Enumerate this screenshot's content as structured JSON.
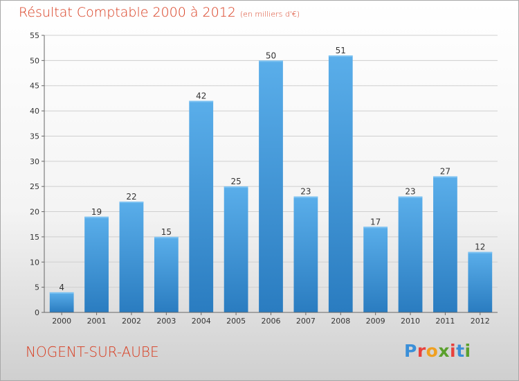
{
  "header": {
    "title": "Résultat Comptable 2000 à 2012",
    "subtitle": "(en milliers d'€)"
  },
  "footer": {
    "commune": "NOGENT-SUR-AUBE",
    "logo_letters": [
      "P",
      "r",
      "o",
      "x",
      "i",
      "t",
      "i"
    ],
    "logo_colors": [
      "#3a8fd8",
      "#e8413c",
      "#f0a020",
      "#5aa02c",
      "#e8413c",
      "#3a8fd8",
      "#5aa02c"
    ]
  },
  "chart_data": {
    "type": "bar",
    "categories": [
      "2000",
      "2001",
      "2002",
      "2003",
      "2004",
      "2005",
      "2006",
      "2007",
      "2008",
      "2009",
      "2010",
      "2011",
      "2012"
    ],
    "values": [
      4,
      19,
      22,
      15,
      42,
      25,
      50,
      23,
      51,
      17,
      23,
      27,
      12
    ],
    "title": "Résultat Comptable 2000 à 2012",
    "ylim": [
      0,
      55
    ],
    "yticks": [
      0,
      5,
      10,
      15,
      20,
      25,
      30,
      35,
      40,
      45,
      50,
      55
    ],
    "grid": true,
    "colors": {
      "bar_top": "#5aaeea",
      "bar_bottom": "#2a7cc0",
      "grid": "#cfcfcf"
    }
  }
}
